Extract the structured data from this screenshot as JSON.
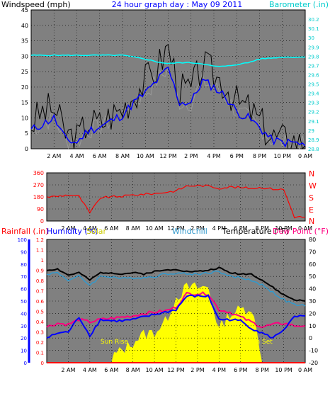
{
  "colors": {
    "bg": "#ffffff",
    "plot": "#808080",
    "grid": "#000000",
    "wind": "#000000",
    "gust_avg": "#0000ff",
    "wind_gray": "#999999",
    "baro": "#00ffff",
    "dir": "#ff0000",
    "rain": "#ff0000",
    "humidity": "#0000ff",
    "solar": "#ffff00",
    "windchill": "#3399cc",
    "temperature": "#000000",
    "dewpoint": "#ff0080",
    "red": "#ff0000",
    "blue": "#0000ff",
    "cyan": "#00cccc"
  },
  "header": {
    "windspeed": "Windspeed (mph)",
    "title": "24 hour graph day : May 09 2011",
    "barometer": "Barometer (.in)"
  },
  "bottom_header": {
    "rainfall": "Rainfall (.in)",
    "humidity": "Humidity (%)",
    "solar": "Solar",
    "windchill": "Windchill",
    "temperature": "Temperature (°F)",
    "dewpoint": "Dew Point (°F)"
  },
  "x_ticks": [
    "2 AM",
    "4 AM",
    "6 AM",
    "8 AM",
    "10 AM",
    "12 PM",
    "2 PM",
    "4 PM",
    "6 PM",
    "8 PM",
    "10 PM",
    "0 AM"
  ],
  "annotations": {
    "sunrise": "Sun Rise",
    "sunset": "Sun Set"
  },
  "chart_data": [
    {
      "type": "line",
      "name": "wind",
      "ylim": [
        0,
        45
      ],
      "ylim_right": [
        28.8,
        30.3
      ],
      "y_ticks": [
        "0",
        "5",
        "10",
        "15",
        "20",
        "25",
        "30",
        "35",
        "40",
        "45"
      ],
      "y_ticks_right": [
        "28.8",
        "28.9",
        "29",
        "29.1",
        "29.2",
        "29.3",
        "29.4",
        "29.5",
        "29.6",
        "29.7",
        "29.8",
        "29.9",
        "30",
        "30.1",
        "30.2"
      ],
      "x": [
        0,
        1,
        2,
        3,
        4,
        5,
        6,
        7,
        8,
        9,
        10,
        11,
        12,
        13,
        14,
        15,
        16,
        17,
        18,
        19,
        20,
        21,
        22,
        23,
        24
      ],
      "series": [
        {
          "name": "Windspeed (mph)",
          "values": [
            8,
            12,
            13,
            5,
            3,
            9,
            8,
            11,
            13,
            18,
            22,
            26,
            33,
            19,
            19,
            27,
            24,
            21,
            15,
            13,
            9,
            4,
            3,
            3,
            1
          ]
        },
        {
          "name": "Average",
          "values": [
            6,
            8,
            10,
            3,
            2,
            6,
            7,
            9,
            11,
            15,
            18,
            22,
            26,
            15,
            15,
            22,
            20,
            17,
            12,
            10,
            7,
            3,
            2,
            2,
            1
          ]
        },
        {
          "name": "Barometer (.in)",
          "values": [
            29.81,
            29.81,
            29.81,
            29.81,
            29.81,
            29.81,
            29.81,
            29.81,
            29.81,
            29.79,
            29.77,
            29.74,
            29.72,
            29.73,
            29.73,
            29.72,
            29.69,
            29.69,
            29.71,
            29.73,
            29.77,
            29.78,
            29.79,
            29.79,
            29.79
          ]
        }
      ]
    },
    {
      "type": "line",
      "name": "wind direction",
      "ylim": [
        0,
        360
      ],
      "y_ticks": [
        "0",
        "90",
        "180",
        "270",
        "360"
      ],
      "y_ticks_right": [
        "N",
        "E",
        "S",
        "W",
        "N"
      ],
      "x": [
        0,
        1,
        2,
        3,
        4,
        5,
        6,
        7,
        8,
        9,
        10,
        11,
        12,
        13,
        14,
        15,
        16,
        17,
        18,
        19,
        20,
        21,
        22,
        23,
        24
      ],
      "series": [
        {
          "name": "Direction",
          "values": [
            180,
            185,
            195,
            185,
            60,
            175,
            180,
            185,
            195,
            200,
            205,
            215,
            225,
            262,
            265,
            262,
            245,
            255,
            250,
            245,
            250,
            240,
            235,
            30,
            30
          ]
        }
      ]
    },
    {
      "type": "line",
      "name": "temperature",
      "ylim": [
        -20,
        80
      ],
      "ylim_left": [
        0,
        1.2
      ],
      "ylim_humidity": [
        0,
        100
      ],
      "y_ticks_rain": [
        "0",
        "0.1",
        "0.2",
        "0.3",
        "0.4",
        "0.5",
        "0.6",
        "0.7",
        "0.8",
        "0.9",
        "1",
        "1.1",
        "1.2"
      ],
      "y_ticks_humidity": [
        "0",
        "10",
        "20",
        "30",
        "40",
        "50",
        "60",
        "70",
        "80",
        "90",
        "100"
      ],
      "y_ticks_right": [
        "-20",
        "-10",
        "0",
        "10",
        "20",
        "30",
        "40",
        "50",
        "60",
        "70",
        "80"
      ],
      "x": [
        0,
        1,
        2,
        3,
        4,
        5,
        6,
        7,
        8,
        9,
        10,
        11,
        12,
        13,
        14,
        15,
        16,
        17,
        18,
        19,
        20,
        21,
        22,
        23,
        24
      ],
      "series": [
        {
          "name": "Temperature (°F)",
          "values": [
            55,
            56,
            51,
            53,
            47,
            53,
            53,
            52,
            53,
            52,
            54,
            55,
            56,
            54,
            54,
            55,
            57,
            53,
            52,
            52,
            47,
            41,
            35,
            31,
            30
          ]
        },
        {
          "name": "Windchill",
          "values": [
            52,
            53,
            47,
            50,
            43,
            50,
            50,
            48,
            49,
            49,
            50,
            52,
            53,
            52,
            52,
            53,
            54,
            50,
            49,
            47,
            43,
            37,
            31,
            27,
            26
          ]
        },
        {
          "name": "Dew Point (°F)",
          "values": [
            9,
            12,
            11,
            15,
            13,
            15,
            16,
            17,
            18,
            20,
            21,
            22,
            25,
            36,
            36,
            36,
            23,
            21,
            17,
            13,
            9,
            11,
            12,
            10,
            10
          ]
        },
        {
          "name": "Humidity (%)",
          "values": [
            20,
            24,
            25,
            37,
            22,
            35,
            34,
            34,
            35,
            37,
            39,
            41,
            43,
            54,
            54,
            54,
            35,
            35,
            34,
            28,
            24,
            20,
            27,
            37,
            38
          ]
        },
        {
          "name": "Solar",
          "values": [
            0,
            0,
            0,
            0,
            0,
            0,
            0,
            5,
            12,
            18,
            20,
            28,
            48,
            56,
            56,
            56,
            22,
            35,
            38,
            40,
            0,
            0,
            0,
            0,
            0
          ]
        },
        {
          "name": "Rainfall (.in)",
          "values": [
            0,
            0,
            0,
            0,
            0,
            0,
            0,
            0,
            0,
            0,
            0,
            0,
            0,
            0,
            0,
            0,
            0,
            0,
            0,
            0,
            0,
            0,
            0,
            0,
            0
          ]
        }
      ]
    }
  ]
}
